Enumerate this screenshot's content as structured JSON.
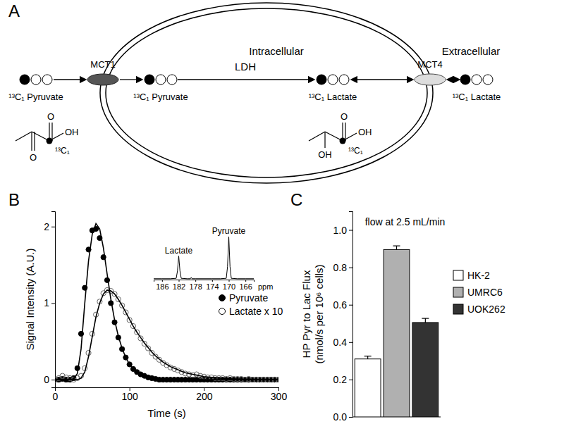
{
  "diagram": {
    "panel": "A",
    "compartments": [
      "Intracellular",
      "Extracellular"
    ],
    "transporters": [
      "MCT1",
      "MCT4"
    ],
    "enzyme": "LDH",
    "species": [
      "¹³C₁ Pyruvate",
      "¹³C₁ Pyruvate",
      "¹³C₁ Lactate",
      "¹³C₁ Lactate"
    ],
    "structures": [
      {
        "label": "¹³C₁",
        "atoms": [
          "O",
          "OH",
          "O"
        ]
      },
      {
        "label": "¹³C₁",
        "atoms": [
          "O",
          "OH",
          "OH"
        ]
      }
    ]
  },
  "chart_data": [
    {
      "panel": "B",
      "type": "scatter",
      "x_label": "Time (s)",
      "y_label": "Signal Intensity (A.U.)",
      "x": [
        0,
        5,
        10,
        15,
        20,
        25,
        30,
        35,
        40,
        45,
        50,
        55,
        60,
        65,
        70,
        75,
        80,
        85,
        90,
        95,
        100,
        105,
        110,
        115,
        120,
        125,
        130,
        135,
        140,
        145,
        150,
        155,
        160,
        165,
        170,
        175,
        180,
        185,
        190,
        195,
        200,
        205,
        210,
        215,
        220,
        225,
        230,
        235,
        240,
        245,
        250,
        255,
        260,
        265,
        270,
        275,
        280,
        285,
        290,
        295,
        300
      ],
      "xlim": [
        0,
        300
      ],
      "xticks": [
        0,
        100,
        200,
        300
      ],
      "ylim": [
        -0.1,
        2.2
      ],
      "yticks": [
        0,
        1,
        2
      ],
      "legend": "right",
      "series": [
        {
          "name": "Pyruvate",
          "type": "scatter",
          "marker": "circle",
          "color": "#000000",
          "values": [
            0,
            0,
            0.01,
            0,
            0,
            0.02,
            0.15,
            0.6,
            1.2,
            1.7,
            1.95,
            1.97,
            1.85,
            1.6,
            1.3,
            1.0,
            0.75,
            0.55,
            0.4,
            0.29,
            0.2,
            0.14,
            0.1,
            0.07,
            0.05,
            0.03,
            0.02,
            0.01,
            0,
            0,
            0,
            0,
            0,
            0,
            0,
            0,
            0,
            0,
            0,
            0,
            0,
            0,
            0,
            0,
            0,
            0,
            0,
            0,
            0,
            0,
            0,
            0,
            0,
            0,
            0,
            0,
            0,
            0,
            0,
            0,
            0
          ]
        },
        {
          "name": "Lactate x 10",
          "type": "scatter",
          "marker": "open-circle",
          "color": "#000000",
          "values": [
            0,
            0.02,
            0.05,
            0.03,
            0.02,
            0,
            0.02,
            0.05,
            0.15,
            0.35,
            0.6,
            0.85,
            1.02,
            1.13,
            1.17,
            1.16,
            1.12,
            1.05,
            0.97,
            0.88,
            0.78,
            0.7,
            0.62,
            0.54,
            0.47,
            0.41,
            0.35,
            0.3,
            0.26,
            0.22,
            0.19,
            0.16,
            0.14,
            0.12,
            0.1,
            0.08,
            0.07,
            0.06,
            0.07,
            0.05,
            0.04,
            0.03,
            0.03,
            0.02,
            0.02,
            0.02,
            0.01,
            0.02,
            0.01,
            0.01,
            0.01,
            0,
            0.01,
            0,
            0,
            0,
            0,
            0,
            0,
            0,
            0
          ]
        },
        {
          "type": "line",
          "line_style": "solid",
          "color": "#000000",
          "values": [
            0,
            0,
            0,
            0,
            0,
            0.01,
            0.08,
            0.4,
            1.0,
            1.55,
            1.9,
            2.04,
            1.97,
            1.72,
            1.38,
            1.05,
            0.78,
            0.57,
            0.41,
            0.29,
            0.2,
            0.14,
            0.1,
            0.07,
            0.05,
            0.03,
            0.02,
            0.01,
            0,
            0,
            0,
            0,
            0,
            0,
            0,
            0,
            0,
            0,
            0,
            0,
            0,
            0,
            0,
            0,
            0,
            0,
            0,
            0,
            0,
            0,
            0,
            0,
            0,
            0,
            0,
            0,
            0,
            0,
            0,
            0,
            0
          ]
        },
        {
          "type": "line",
          "line_style": "solid",
          "color": "#000000",
          "values": [
            0,
            0,
            0,
            0,
            0,
            0,
            0,
            0.02,
            0.1,
            0.3,
            0.56,
            0.82,
            1.0,
            1.12,
            1.17,
            1.16,
            1.12,
            1.05,
            0.97,
            0.88,
            0.79,
            0.7,
            0.62,
            0.55,
            0.48,
            0.42,
            0.36,
            0.31,
            0.27,
            0.23,
            0.2,
            0.17,
            0.15,
            0.13,
            0.11,
            0.09,
            0.08,
            0.07,
            0.06,
            0.05,
            0.04,
            0.035,
            0.03,
            0.025,
            0.02,
            0.018,
            0.015,
            0.013,
            0.011,
            0.01,
            0.008,
            0.007,
            0.006,
            0.005,
            0.004,
            0.003,
            0.003,
            0.002,
            0.002,
            0.001,
            0.001
          ]
        }
      ]
    },
    {
      "type": "line",
      "x_label": "ppm",
      "x": [
        188,
        186,
        184,
        182.6,
        182.3,
        182,
        181.7,
        181.4,
        180,
        179.2,
        179,
        178.8,
        178,
        176,
        174,
        172,
        170.6,
        170.3,
        170,
        169.7,
        169.4,
        168,
        166,
        164
      ],
      "xlim": [
        188,
        164
      ],
      "xticks": [
        186,
        182,
        178,
        174,
        170,
        166
      ],
      "ylim": [
        0,
        1.1
      ],
      "tick_labels": "x",
      "annotations": [
        {
          "text": "Lactate",
          "x": 182,
          "y": 0.55
        },
        {
          "text": "Pyruvate",
          "x": 170,
          "y": 1.0
        }
      ],
      "series": [
        {
          "color": "#000000",
          "values": [
            0.02,
            0.02,
            0.02,
            0.03,
            0.2,
            0.55,
            0.2,
            0.03,
            0.02,
            0.02,
            0.05,
            0.02,
            0.02,
            0.02,
            0.02,
            0.02,
            0.03,
            0.3,
            1.0,
            0.3,
            0.03,
            0.02,
            0.02,
            0.02
          ]
        }
      ]
    },
    {
      "panel": "C",
      "type": "bar",
      "title": "flow at 2.5 mL/min",
      "y_label": [
        "HP Pyr to Lac Flux",
        "(nmol/s per 10⁶ cells)"
      ],
      "categories": [
        "HK-2",
        "UMRC6",
        "UOK262"
      ],
      "values": [
        0.31,
        0.895,
        0.505
      ],
      "errors": [
        0.015,
        0.02,
        0.022
      ],
      "colors": [
        "#ffffff",
        "#b0b0b0",
        "#333333"
      ],
      "ylim": [
        0,
        1.1
      ],
      "yticks": [
        {
          "value": 0,
          "label": "0.0"
        },
        {
          "value": 0.2,
          "label": "0.2"
        },
        {
          "value": 0.4,
          "label": "0.4"
        },
        {
          "value": 0.6,
          "label": "0.6"
        },
        {
          "value": 0.8,
          "label": "0.8"
        },
        {
          "value": 1,
          "label": "1.0"
        }
      ],
      "tick_labels": "y",
      "legend": "right"
    }
  ]
}
